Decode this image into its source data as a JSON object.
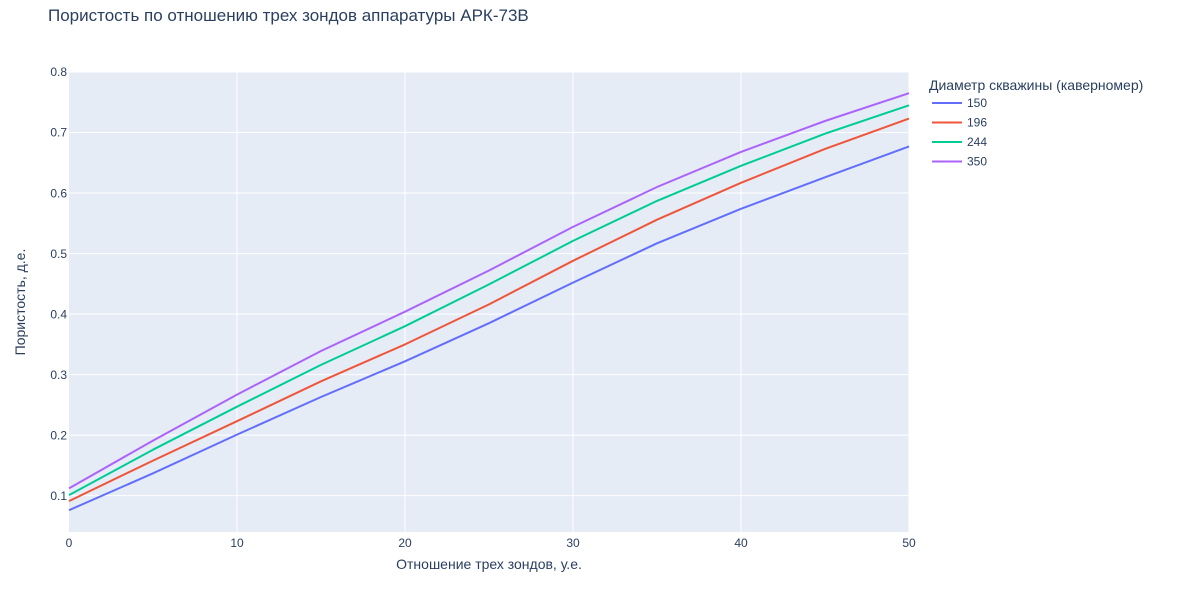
{
  "chart_data": {
    "type": "line",
    "title": "Пористость по отношению трех зондов аппаратуры АРК-73В",
    "xlabel": "Отношение трех зондов, у.е.",
    "ylabel": "Пористость, д.е.",
    "xlim": [
      0,
      50
    ],
    "ylim": [
      0.04,
      0.8
    ],
    "xticks": [
      0,
      10,
      20,
      30,
      40,
      50
    ],
    "yticks": [
      0.1,
      0.2,
      0.3,
      0.4,
      0.5,
      0.6,
      0.7,
      0.8
    ],
    "grid": true,
    "legend_title": "Диаметр скважины (каверномер)",
    "legend_position": "right",
    "x": [
      0,
      5,
      10,
      15,
      20,
      25,
      30,
      35,
      40,
      45,
      50
    ],
    "series": [
      {
        "name": "150",
        "color": "#636efa",
        "values": [
          0.076,
          0.137,
          0.201,
          0.263,
          0.322,
          0.385,
          0.452,
          0.517,
          0.574,
          0.626,
          0.677
        ]
      },
      {
        "name": "196",
        "color": "#ef553b",
        "values": [
          0.091,
          0.158,
          0.223,
          0.289,
          0.35,
          0.416,
          0.488,
          0.556,
          0.617,
          0.673,
          0.723
        ]
      },
      {
        "name": "244",
        "color": "#00cc96",
        "values": [
          0.101,
          0.176,
          0.247,
          0.316,
          0.38,
          0.449,
          0.521,
          0.587,
          0.645,
          0.698,
          0.745
        ]
      },
      {
        "name": "350",
        "color": "#ab63fa",
        "values": [
          0.112,
          0.191,
          0.267,
          0.339,
          0.404,
          0.472,
          0.544,
          0.61,
          0.668,
          0.719,
          0.765
        ]
      }
    ]
  }
}
